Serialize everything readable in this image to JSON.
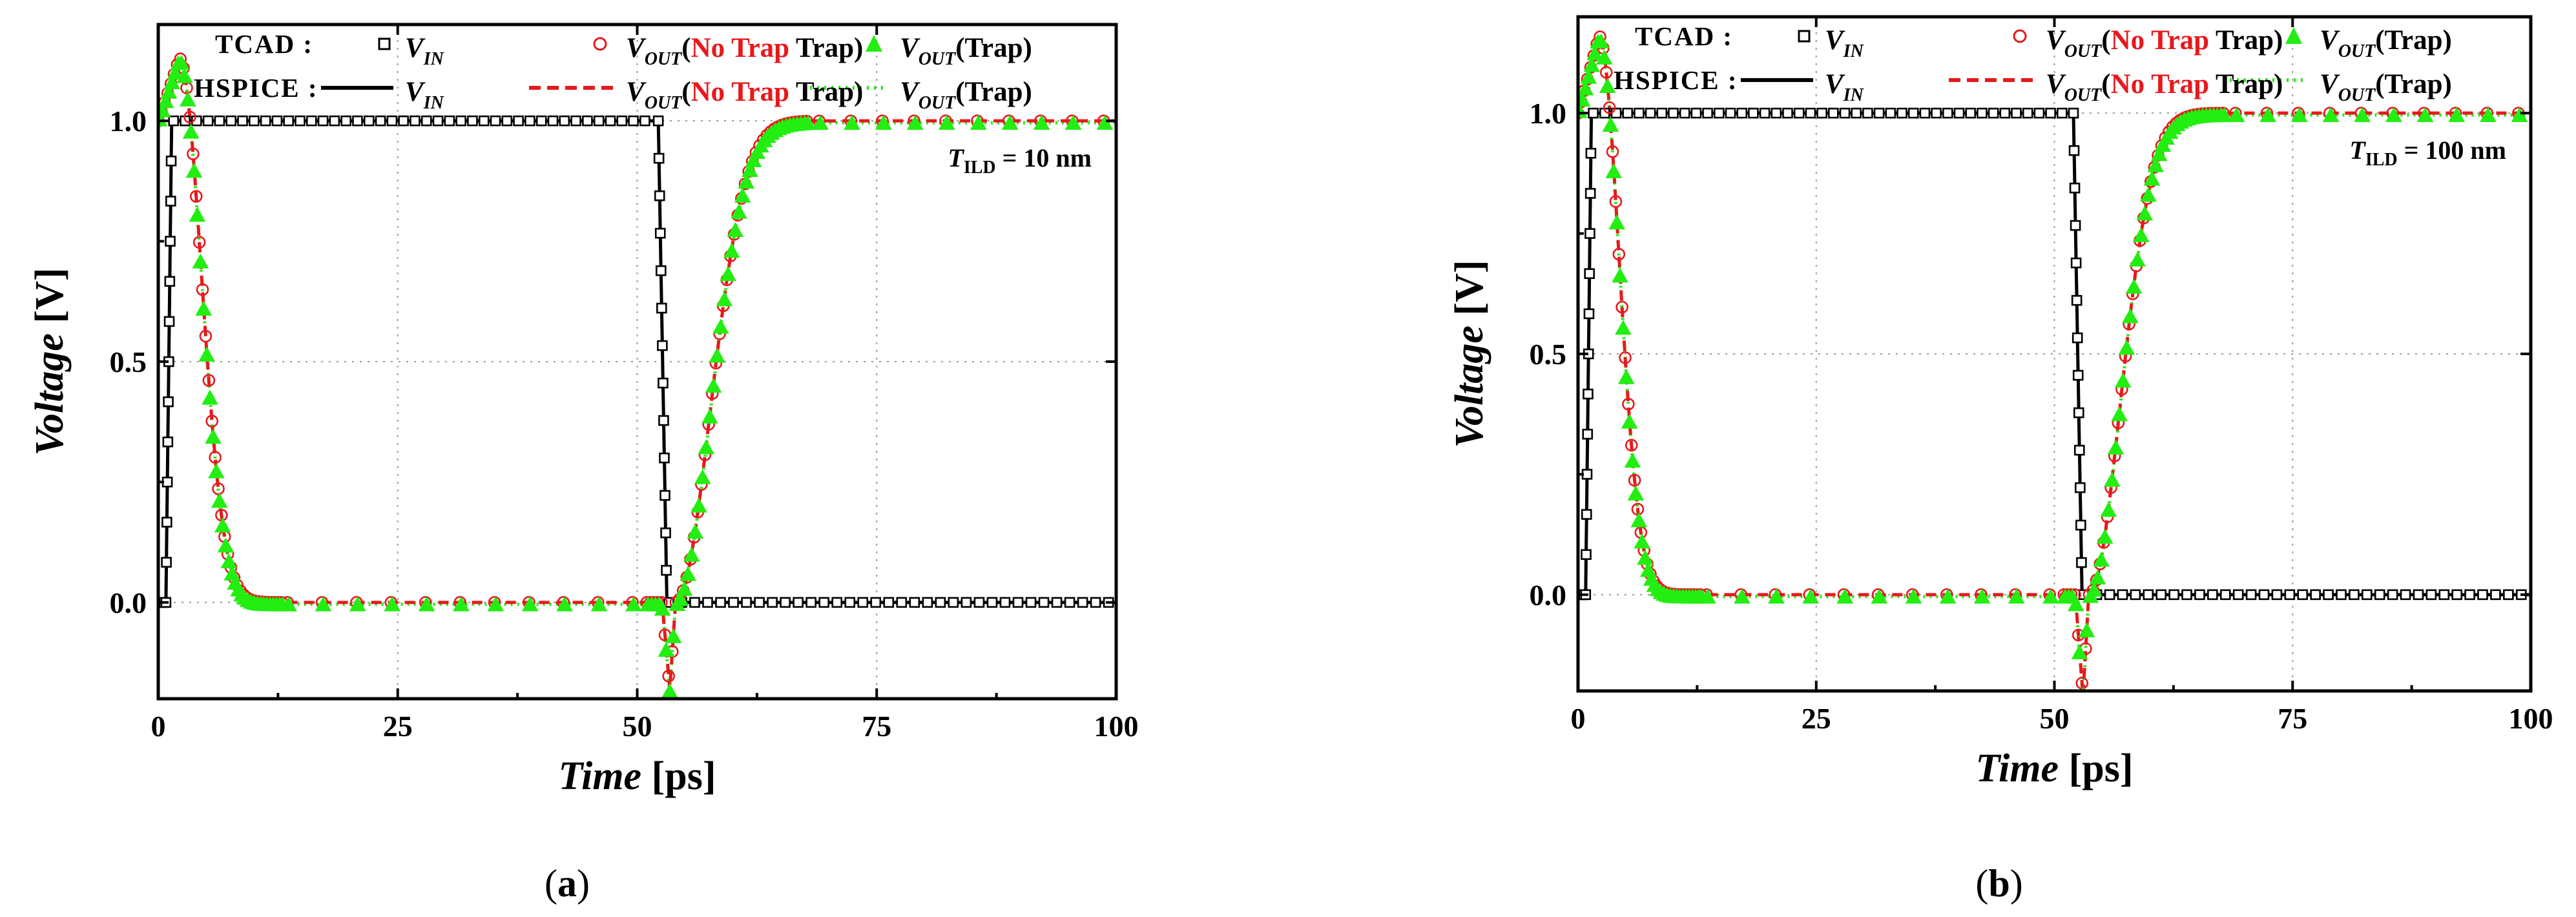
{
  "colors": {
    "vin": "#000000",
    "no_trap": "#e8181c",
    "trap": "#22ee11"
  },
  "legend": {
    "tcad_label": "TCAD :",
    "hspice_label": "HSPICE :",
    "v": "V",
    "sub_in": "IN",
    "sub_out": "OUT",
    "no_trap": "No Trap",
    "trap": "(Trap)",
    "paren_open": "(",
    "paren_close": " Trap)",
    "marker_square": "square-marker-icon",
    "marker_circle": "circle-marker-icon",
    "marker_triangle": "triangle-marker-icon"
  },
  "chart_data": [
    {
      "type": "line",
      "caption": "(a)",
      "caption_letter": "a",
      "xlabel": "Time",
      "xunit": "[ps]",
      "ylabel": "Voltage",
      "yunit": "[V]",
      "xlim": [
        0,
        100
      ],
      "ylim": [
        -0.2,
        1.2
      ],
      "xticks": [
        "0",
        "25",
        "50",
        "75",
        "100"
      ],
      "yticks": [
        "0.0",
        "0.5",
        "1.0"
      ],
      "xtick_values": [
        0,
        25,
        50,
        75,
        100
      ],
      "ytick_values": [
        0.0,
        0.5,
        1.0
      ],
      "annotation": {
        "t": "T",
        "sub": "ILD",
        "text": " = 10 nm"
      },
      "params": {
        "rise_start": 0.8,
        "rise_end": 1.4,
        "fall_start": 52.2,
        "fall_end": 53.1,
        "out_peak_t": 2.2,
        "out_peak": 1.13,
        "out_fall_tau": 2.3,
        "out_dip_t": 53.4,
        "out_dip": -0.18,
        "out_rise_t0": 54.0,
        "out_rise_tau": 3.6
      },
      "series": [
        {
          "name": "TCAD V_IN",
          "marker": "square"
        },
        {
          "name": "TCAD V_OUT (No Trap)",
          "marker": "circle"
        },
        {
          "name": "TCAD V_OUT (Trap)",
          "marker": "triangle"
        },
        {
          "name": "HSPICE V_IN",
          "line": "solid"
        },
        {
          "name": "HSPICE V_OUT (No Trap)",
          "line": "dashed"
        },
        {
          "name": "HSPICE V_OUT (Trap)",
          "line": "dotted"
        }
      ]
    },
    {
      "type": "line",
      "caption": "(b)",
      "caption_letter": "b",
      "xlabel": "Time",
      "xunit": "[ps]",
      "ylabel": "Voltage",
      "yunit": "[V]",
      "xlim": [
        0,
        100
      ],
      "ylim": [
        -0.2,
        1.2
      ],
      "xticks": [
        "0",
        "25",
        "50",
        "75",
        "100"
      ],
      "yticks": [
        "0.0",
        "0.5",
        "1.0"
      ],
      "xtick_values": [
        0,
        25,
        50,
        75,
        100
      ],
      "ytick_values": [
        0.0,
        0.5,
        1.0
      ],
      "annotation": {
        "t": "T",
        "sub": "ILD",
        "text": " = 100 nm"
      },
      "params": {
        "rise_start": 0.8,
        "rise_end": 1.4,
        "fall_start": 52.0,
        "fall_end": 52.9,
        "out_peak_t": 2.2,
        "out_peak": 1.16,
        "out_fall_tau": 2.1,
        "out_dip_t": 53.0,
        "out_dip": -0.21,
        "out_rise_t0": 53.6,
        "out_rise_tau": 3.3
      },
      "series": [
        {
          "name": "TCAD V_IN",
          "marker": "square"
        },
        {
          "name": "TCAD V_OUT (No Trap)",
          "marker": "circle"
        },
        {
          "name": "TCAD V_OUT (Trap)",
          "marker": "triangle"
        },
        {
          "name": "HSPICE V_IN",
          "line": "solid"
        },
        {
          "name": "HSPICE V_OUT (No Trap)",
          "line": "dashed"
        },
        {
          "name": "HSPICE V_OUT (Trap)",
          "line": "dotted"
        }
      ]
    }
  ]
}
